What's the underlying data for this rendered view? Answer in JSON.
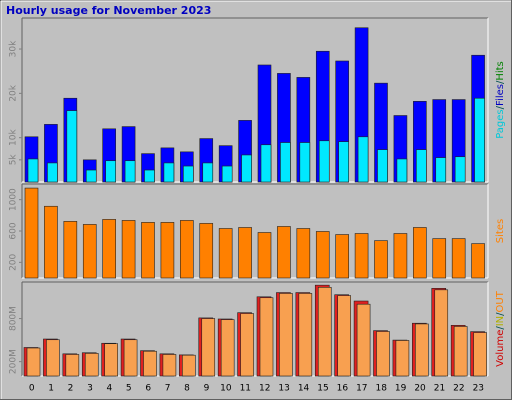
{
  "title": "Hourly usage for November 2023",
  "chart_data": [
    {
      "type": "bar",
      "legend": [
        {
          "text": "Pages",
          "color": "#00c8d8"
        },
        {
          "text": "/",
          "color": "#005050"
        },
        {
          "text": "Files",
          "color": "#0000c0"
        },
        {
          "text": "/",
          "color": "#005050"
        },
        {
          "text": "Hits",
          "color": "#008000"
        }
      ],
      "series": [
        {
          "name": "Files",
          "color": "#0000ff",
          "values": [
            10200,
            13000,
            18900,
            5000,
            12000,
            12500,
            6400,
            7700,
            6800,
            9800,
            8200,
            13900,
            26400,
            24500,
            23600,
            29500,
            27300,
            34800,
            22300,
            15000,
            18200,
            18600,
            18600,
            28600
          ]
        },
        {
          "name": "Pages",
          "color": "#00e8ff",
          "values": [
            5200,
            4300,
            16100,
            2700,
            4800,
            4800,
            2700,
            4300,
            3600,
            4300,
            3600,
            6100,
            8400,
            8900,
            8900,
            9300,
            9100,
            10200,
            7300,
            5200,
            7300,
            5500,
            5700,
            18900
          ]
        }
      ],
      "ylim": [
        0,
        37000
      ],
      "yticks": [
        {
          "value": 5000,
          "label": "5k"
        },
        {
          "value": 10000,
          "label": "10k"
        },
        {
          "value": 20000,
          "label": "20k"
        },
        {
          "value": 30000,
          "label": "30k"
        }
      ]
    },
    {
      "type": "bar",
      "legend": [
        {
          "text": "Sites",
          "color": "#ff8000"
        }
      ],
      "series": [
        {
          "name": "Sites",
          "color": "#ff8000",
          "values": [
            1148,
            916,
            723,
            684,
            748,
            735,
            710,
            710,
            735,
            697,
            632,
            645,
            581,
            658,
            632,
            594,
            555,
            568,
            477,
            568,
            645,
            503,
            503,
            439
          ]
        }
      ],
      "ylim": [
        0,
        1200
      ],
      "yticks": [
        200,
        600,
        1000
      ]
    },
    {
      "type": "bar",
      "legend": [
        {
          "text": "Volume",
          "color": "#d00000"
        },
        {
          "text": "/",
          "color": "#005050"
        },
        {
          "text": "IN",
          "color": "#b0b000"
        },
        {
          "text": "/",
          "color": "#005050"
        },
        {
          "text": "OUT",
          "color": "#ff8000"
        }
      ],
      "series": [
        {
          "name": "IN",
          "color": "#e02020",
          "values": [
            397,
            515,
            309,
            324,
            456,
            515,
            353,
            309,
            294,
            809,
            794,
            882,
            1103,
            1162,
            1162,
            1265,
            1132,
            1044,
            632,
            500,
            735,
            1221,
            706,
            618
          ]
        },
        {
          "name": "OUT",
          "color": "#f8a050",
          "values": [
            390,
            505,
            300,
            315,
            450,
            505,
            345,
            300,
            290,
            800,
            785,
            870,
            1090,
            1150,
            1150,
            1235,
            1120,
            1000,
            620,
            495,
            725,
            1200,
            690,
            605
          ]
        }
      ],
      "ylim": [
        0,
        1309
      ],
      "yticks": [
        {
          "value": 200,
          "label": "200M"
        },
        {
          "value": 800,
          "label": "800M"
        }
      ],
      "categories": [
        "0",
        "1",
        "2",
        "3",
        "4",
        "5",
        "6",
        "7",
        "8",
        "9",
        "10",
        "11",
        "12",
        "13",
        "14",
        "15",
        "16",
        "17",
        "18",
        "19",
        "20",
        "21",
        "22",
        "23"
      ]
    }
  ]
}
